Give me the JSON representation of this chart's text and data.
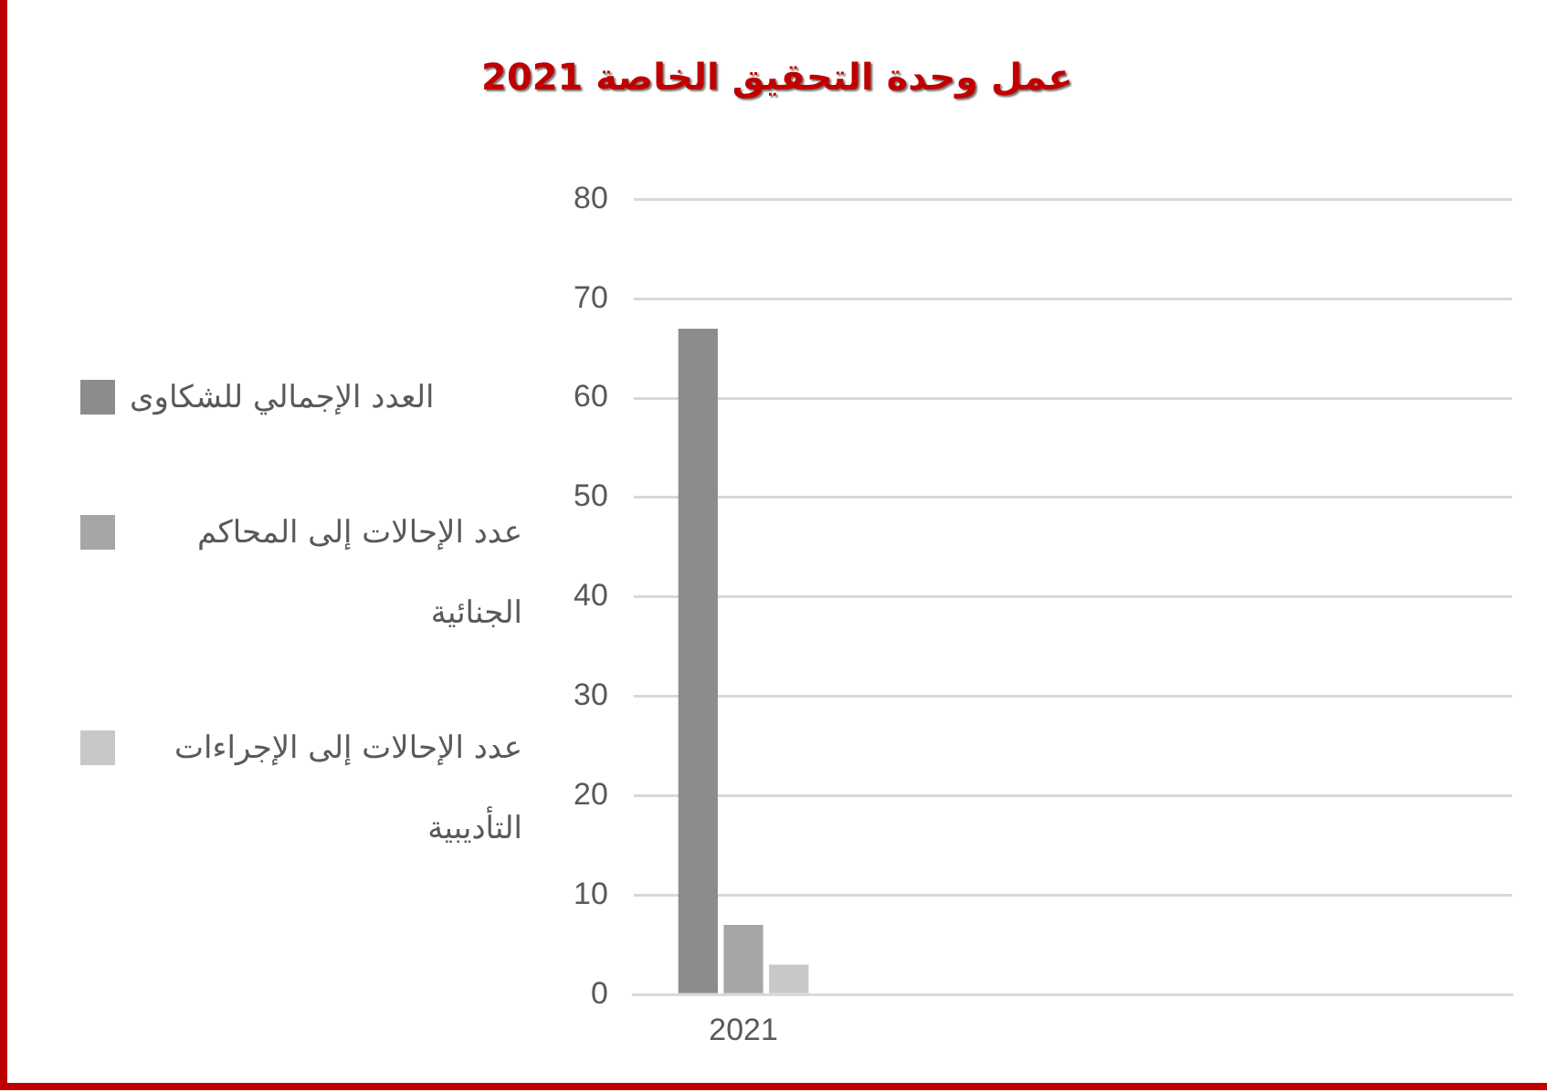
{
  "chart_data": {
    "type": "bar",
    "title": "عمل وحدة التحقيق الخاصة 2021",
    "categories": [
      "2021",
      null,
      null,
      null
    ],
    "series": [
      {
        "name": "العدد الإجمالي للشكاوى",
        "color": "#8c8c8c",
        "values": [
          67,
          null,
          null,
          null
        ]
      },
      {
        "name": "عدد الإحالات إلى المحاكم الجنائية",
        "color": "#a6a6a6",
        "values": [
          7,
          null,
          null,
          null
        ]
      },
      {
        "name": "عدد الإحالات إلى الإجراءات التأديبية",
        "color": "#c8c8c8",
        "values": [
          3,
          null,
          null,
          null
        ]
      }
    ],
    "ylim": [
      0,
      80
    ],
    "yticks": [
      0,
      10,
      20,
      30,
      40,
      50,
      60,
      70,
      80
    ],
    "grid": "y",
    "legend": "left"
  }
}
